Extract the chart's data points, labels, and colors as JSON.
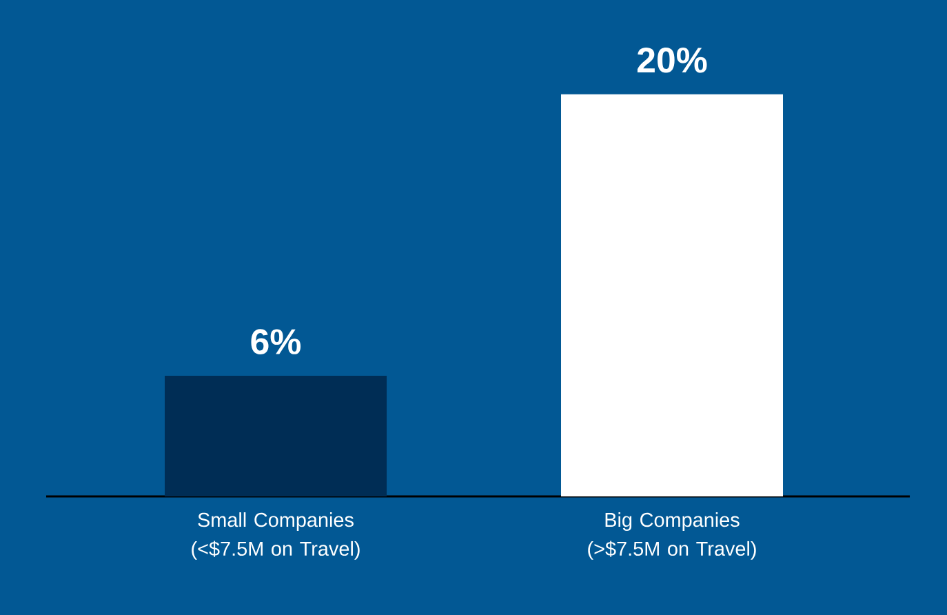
{
  "chart_data": {
    "type": "bar",
    "categories": [
      "Small Companies (<$7.5M on Travel)",
      "Big Companies (>$7.5M on Travel)"
    ],
    "values": [
      6,
      20
    ],
    "colors": [
      "#002d55",
      "#ffffff"
    ],
    "value_labels": [
      "6%",
      "20%"
    ]
  }
}
